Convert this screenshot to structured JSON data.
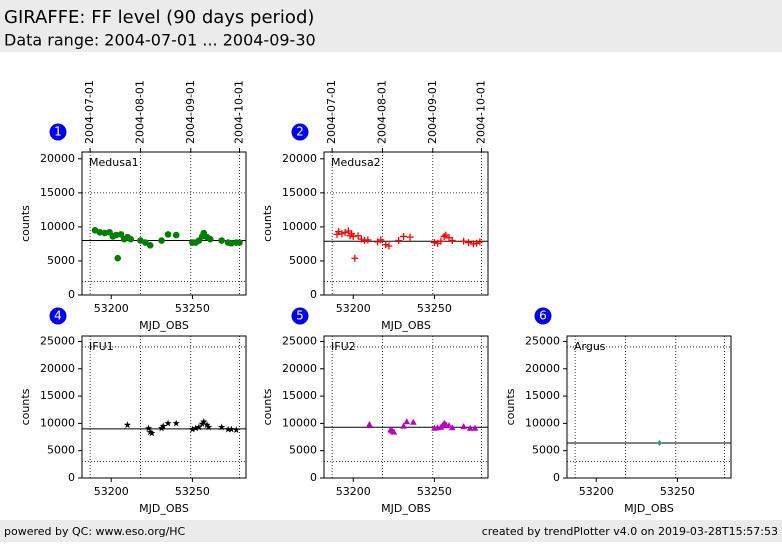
{
  "header": {
    "title": "GIRAFFE: FF level (90 days period)",
    "subtitle": "Data range: 2004-07-01 ... 2004-09-30"
  },
  "footer": {
    "left": "powered by QC: www.eso.org/HC",
    "right": "created by trendPlotter v4.0 on 2019-03-28T15:57:53"
  },
  "chart_data": [
    {
      "type": "scatter",
      "panel": "1",
      "label": "Medusa1",
      "xlabel": "MJD_OBS",
      "ylabel": "counts",
      "color": "#008000",
      "marker": "circle",
      "xlim": [
        53182,
        53283
      ],
      "xticks": [
        53200,
        53250
      ],
      "ylim": [
        0,
        21000
      ],
      "yticks": [
        0,
        5000,
        10000,
        15000,
        20000
      ],
      "date_lines": [
        {
          "value": 53187,
          "label": "2004-07-01"
        },
        {
          "value": 53218,
          "label": "2004-08-01"
        },
        {
          "value": 53249,
          "label": "2004-09-01"
        },
        {
          "value": 53279,
          "label": "2004-10-01"
        }
      ],
      "mean": 8000,
      "limits": [
        2000,
        15000
      ],
      "x": [
        53190,
        53193,
        53196,
        53199,
        53201,
        53203,
        53204,
        53206,
        53208,
        53210,
        53212,
        53218,
        53221,
        53224,
        53231,
        53235,
        53240,
        53250,
        53252,
        53254,
        53256,
        53257,
        53259,
        53261,
        53268,
        53272,
        53274,
        53277,
        53279
      ],
      "values": [
        9500,
        9200,
        9100,
        9200,
        8600,
        8800,
        5400,
        8900,
        8200,
        8500,
        8200,
        8000,
        7700,
        7300,
        8000,
        8900,
        8800,
        7700,
        7700,
        8000,
        8600,
        9100,
        8500,
        8200,
        8000,
        7700,
        7600,
        7700,
        7700
      ]
    },
    {
      "type": "scatter",
      "panel": "2",
      "label": "Medusa2",
      "xlabel": "MJD_OBS",
      "ylabel": "counts",
      "color": "#ff0000",
      "marker": "plus",
      "xlim": [
        53182,
        53283
      ],
      "xticks": [
        53200,
        53250
      ],
      "ylim": [
        0,
        21000
      ],
      "yticks": [
        0,
        5000,
        10000,
        15000,
        20000
      ],
      "date_lines": [
        {
          "value": 53187,
          "label": "2004-07-01"
        },
        {
          "value": 53218,
          "label": "2004-08-01"
        },
        {
          "value": 53249,
          "label": "2004-09-01"
        },
        {
          "value": 53279,
          "label": "2004-10-01"
        }
      ],
      "mean": 7900,
      "limits": [
        2000,
        15000
      ],
      "x": [
        53190,
        53191,
        53193,
        53195,
        53197,
        53198,
        53199,
        53200,
        53201,
        53203,
        53205,
        53207,
        53209,
        53215,
        53217,
        53220,
        53222,
        53228,
        53231,
        53235,
        53250,
        53252,
        53254,
        53256,
        53257,
        53259,
        53261,
        53268,
        53271,
        53274,
        53276,
        53278
      ],
      "values": [
        8900,
        9300,
        9000,
        9200,
        9400,
        8700,
        9000,
        8600,
        5400,
        8700,
        8200,
        8000,
        8100,
        7800,
        8100,
        7400,
        7200,
        8000,
        8600,
        8500,
        7700,
        7600,
        7900,
        8600,
        8800,
        8400,
        8000,
        7900,
        7700,
        7500,
        7600,
        7800
      ]
    },
    {
      "type": "scatter",
      "panel": "4",
      "label": "IFU1",
      "xlabel": "MJD_OBS",
      "ylabel": "counts",
      "color": "#000000",
      "marker": "star",
      "xlim": [
        53182,
        53283
      ],
      "xticks": [
        53200,
        53250
      ],
      "ylim": [
        0,
        26000
      ],
      "yticks": [
        0,
        5000,
        10000,
        15000,
        20000,
        25000
      ],
      "date_lines": [
        53187,
        53218,
        53249,
        53279
      ],
      "mean": 9000,
      "limits": [
        3000,
        24000
      ],
      "x": [
        53210,
        53223,
        53224,
        53225,
        53231,
        53232,
        53235,
        53240,
        53250,
        53252,
        53254,
        53256,
        53257,
        53259,
        53260,
        53268,
        53272,
        53274,
        53277
      ],
      "values": [
        9700,
        9100,
        8400,
        8200,
        9100,
        9500,
        10000,
        10000,
        8900,
        9100,
        9300,
        9900,
        10300,
        9700,
        9300,
        9300,
        8900,
        8900,
        8800
      ]
    },
    {
      "type": "scatter",
      "panel": "5",
      "label": "IFU2",
      "xlabel": "MJD_OBS",
      "ylabel": "counts",
      "color": "#c000c0",
      "marker": "triangle",
      "xlim": [
        53182,
        53283
      ],
      "xticks": [
        53200,
        53250
      ],
      "ylim": [
        0,
        26000
      ],
      "yticks": [
        0,
        5000,
        10000,
        15000,
        20000,
        25000
      ],
      "date_lines": [
        53187,
        53218,
        53249,
        53279
      ],
      "mean": 9300,
      "limits": [
        3000,
        24000
      ],
      "x": [
        53210,
        53223,
        53224,
        53225,
        53231,
        53233,
        53237,
        53250,
        53252,
        53254,
        53255,
        53256,
        53257,
        53259,
        53261,
        53268,
        53272,
        53275
      ],
      "values": [
        9800,
        8800,
        8600,
        8400,
        9500,
        10300,
        10200,
        9100,
        9200,
        9300,
        9600,
        10000,
        9800,
        9600,
        9200,
        9400,
        9100,
        9100
      ]
    },
    {
      "type": "scatter",
      "panel": "6",
      "label": "Argus",
      "xlabel": "MJD_OBS",
      "ylabel": "counts",
      "color": "#20a080",
      "marker": "diamond",
      "xlim": [
        53182,
        53283
      ],
      "xticks": [
        53200,
        53250
      ],
      "ylim": [
        0,
        26000
      ],
      "yticks": [
        0,
        5000,
        10000,
        15000,
        20000,
        25000
      ],
      "date_lines": [
        53187,
        53218,
        53249,
        53279
      ],
      "mean": 6400,
      "limits": [
        3000,
        24000
      ],
      "x": [
        53239
      ],
      "values": [
        6400
      ]
    }
  ]
}
